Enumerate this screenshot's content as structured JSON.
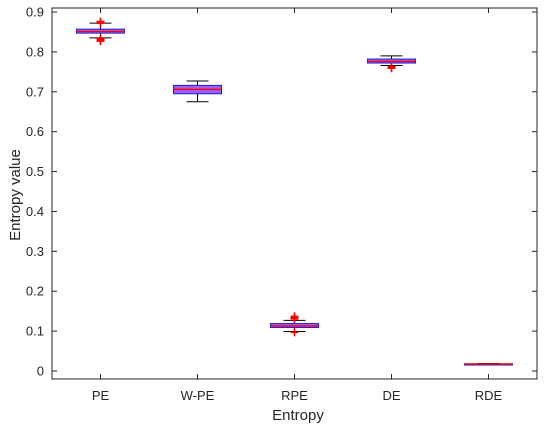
{
  "chart_data": {
    "type": "box",
    "title": "",
    "xlabel": "Entropy",
    "ylabel": "Entropy value",
    "ylim": [
      -0.02,
      0.91
    ],
    "yticks": [
      0,
      0.1,
      0.2,
      0.3,
      0.4,
      0.5,
      0.6,
      0.7,
      0.8,
      0.9
    ],
    "yticklabels": [
      "0",
      "0.1",
      "0.2",
      "0.3",
      "0.4",
      "0.5",
      "0.6",
      "0.7",
      "0.8",
      "0.9"
    ],
    "grid": false,
    "colors": {
      "box_fill": "#a35cf0",
      "box_edge": "#1f1fd8",
      "median": "#ff0000",
      "outlier": "#ff0000",
      "whisker": "#000000",
      "axis": "#262626"
    },
    "boxes": [
      {
        "category": "PE",
        "whisker_low": 0.835,
        "q1": 0.847,
        "median": 0.851,
        "q3": 0.857,
        "whisker_high": 0.872,
        "outliers": [
          0.827,
          0.83,
          0.833,
          0.872,
          0.876
        ]
      },
      {
        "category": "W-PE",
        "whisker_low": 0.675,
        "q1": 0.695,
        "median": 0.706,
        "q3": 0.716,
        "whisker_high": 0.727,
        "outliers": []
      },
      {
        "category": "RPE",
        "whisker_low": 0.099,
        "q1": 0.109,
        "median": 0.113,
        "q3": 0.119,
        "whisker_high": 0.127,
        "outliers": [
          0.097,
          0.131,
          0.134,
          0.137
        ]
      },
      {
        "category": "DE",
        "whisker_low": 0.766,
        "q1": 0.772,
        "median": 0.776,
        "q3": 0.782,
        "whisker_high": 0.79,
        "outliers": [
          0.759,
          0.763
        ]
      },
      {
        "category": "RDE",
        "whisker_low": 0.016,
        "q1": 0.017,
        "median": 0.0175,
        "q3": 0.018,
        "whisker_high": 0.019,
        "outliers": []
      }
    ]
  }
}
